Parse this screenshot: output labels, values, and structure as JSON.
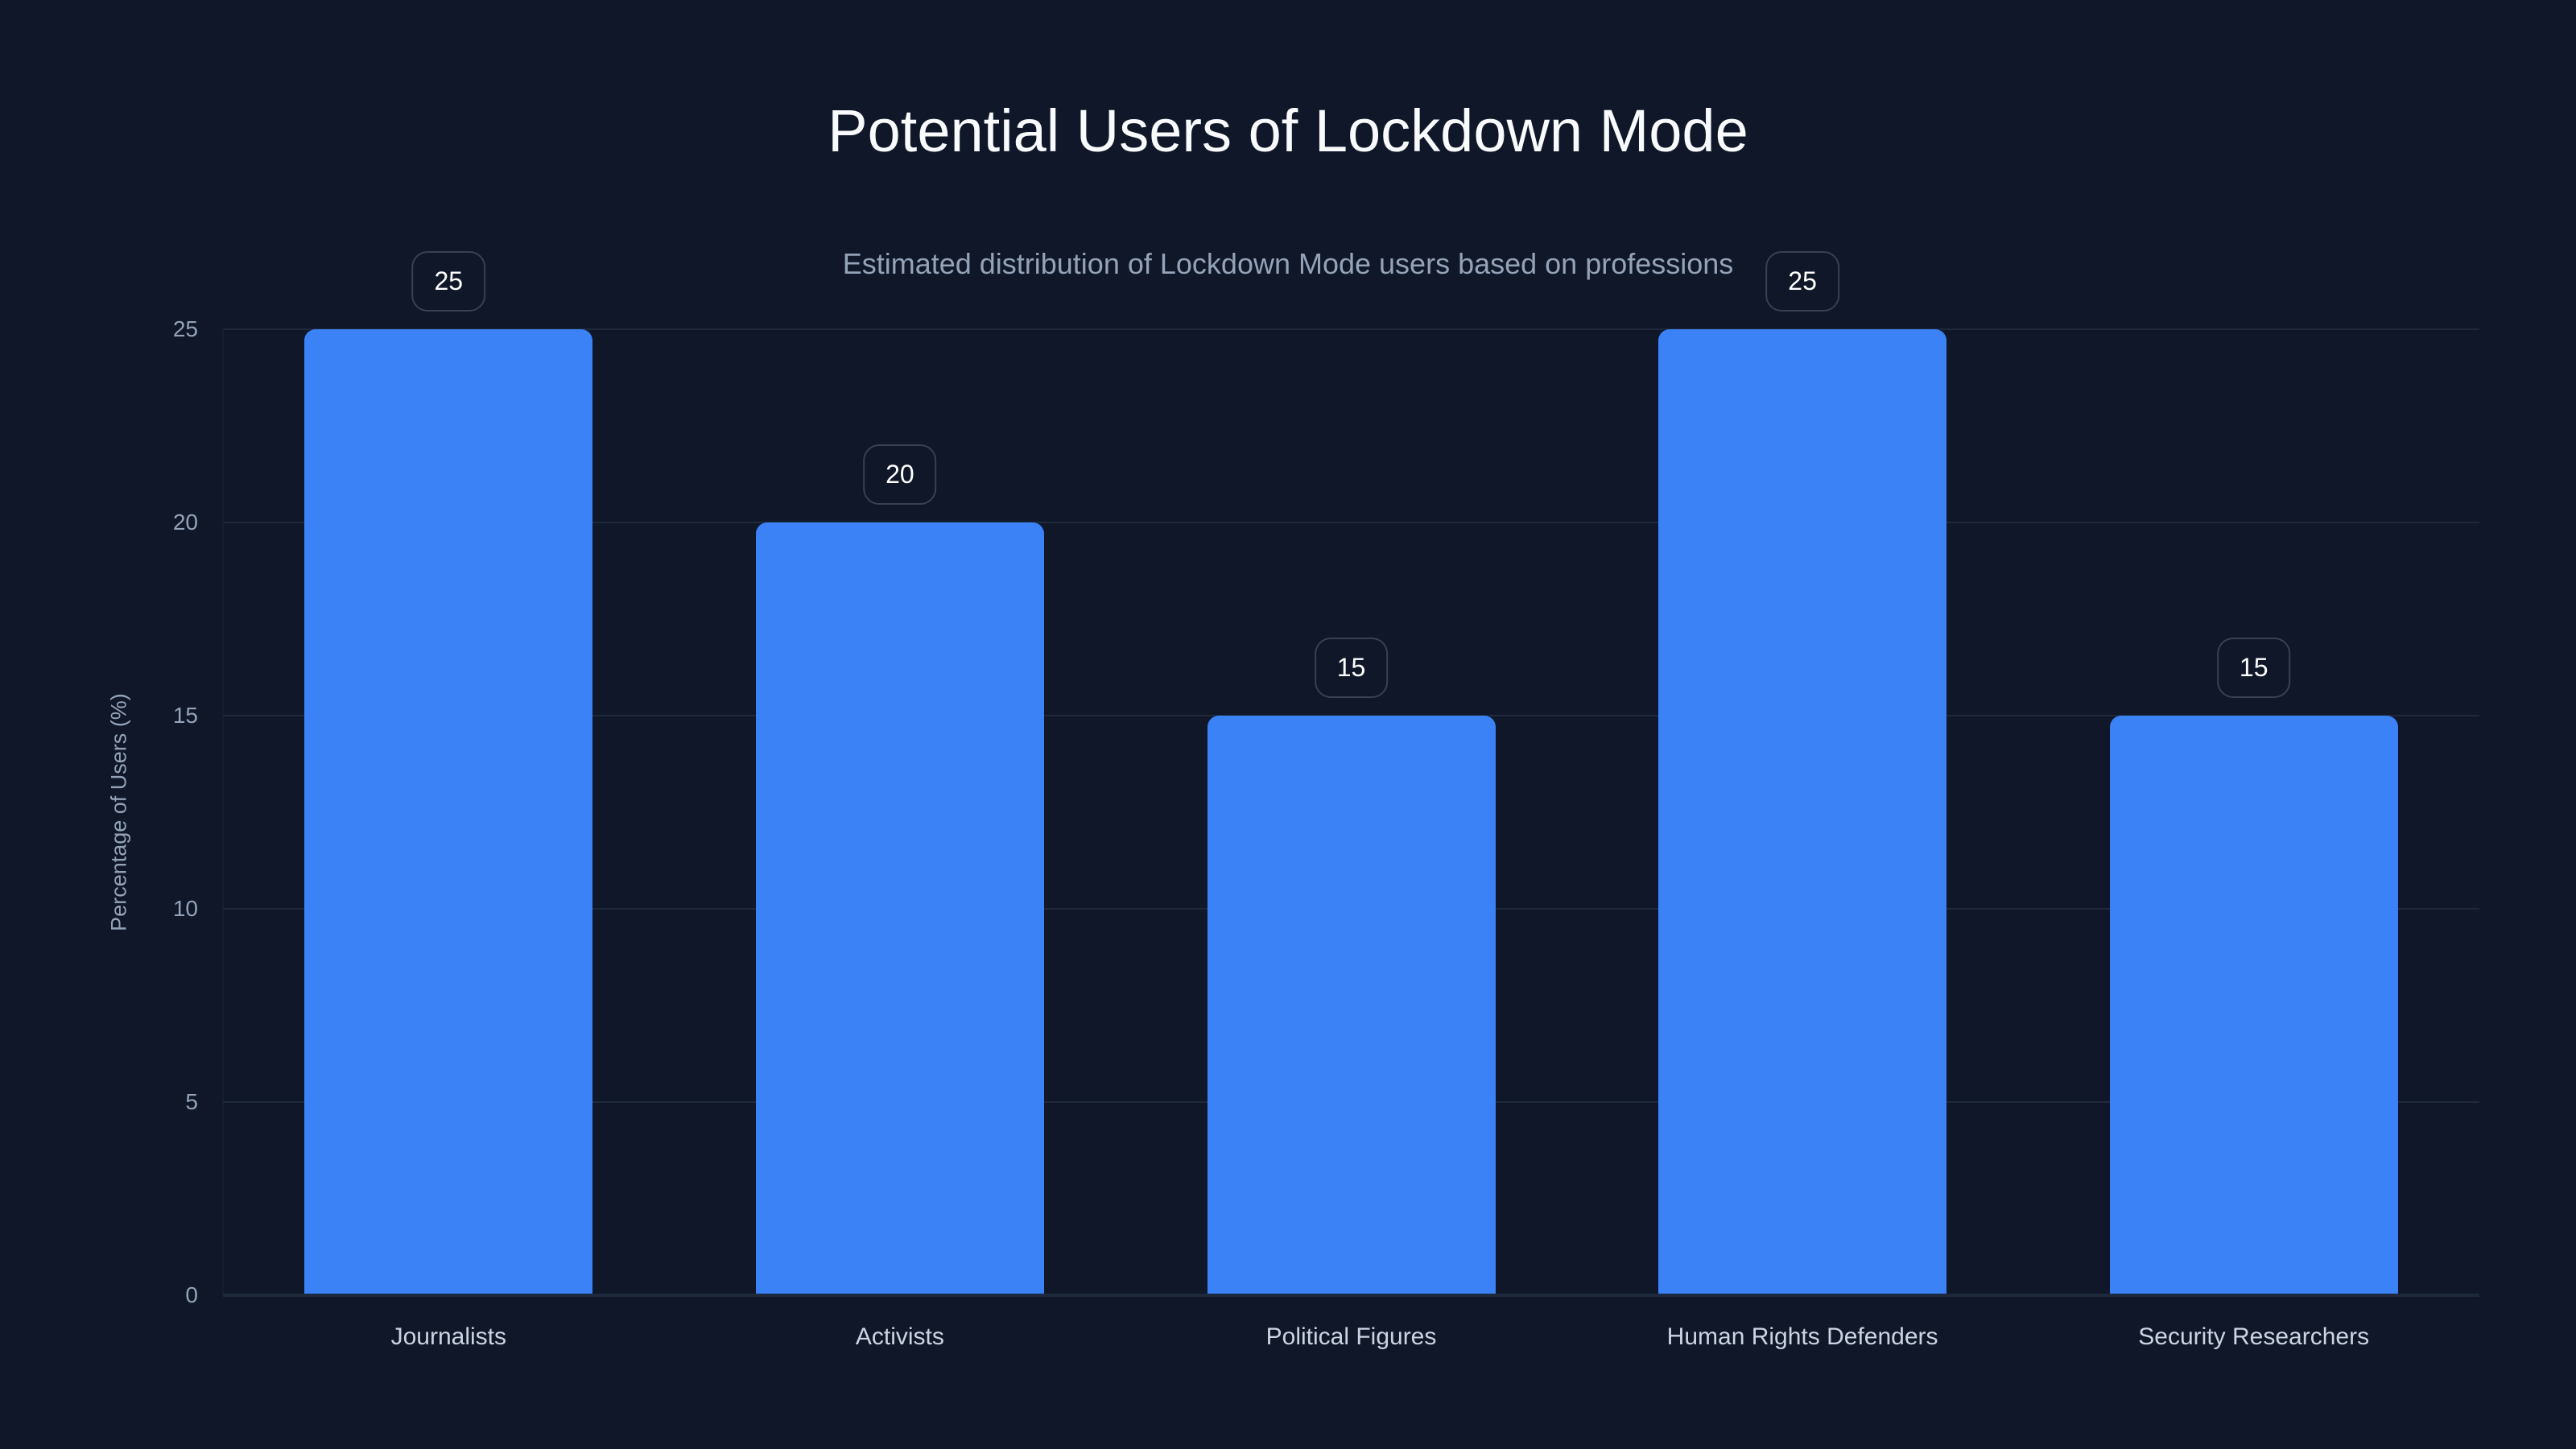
{
  "header": {
    "title": "Potential Users of Lockdown Mode",
    "subtitle": "Estimated distribution of Lockdown Mode users based on professions"
  },
  "axes": {
    "y_title": "Percentage of Users (%)",
    "y_ticks": [
      "0",
      "5",
      "10",
      "15",
      "20",
      "25"
    ]
  },
  "colors": {
    "background": "#0f1729",
    "bar": "#3b82f6",
    "gridline": "#1e293b",
    "badge_border": "#374151",
    "muted_text": "#94a3b8"
  },
  "chart_data": {
    "type": "bar",
    "title": "Potential Users of Lockdown Mode",
    "subtitle": "Estimated distribution of Lockdown Mode users based on professions",
    "categories": [
      "Journalists",
      "Activists",
      "Political Figures",
      "Human Rights Defenders",
      "Security Researchers"
    ],
    "values": [
      25,
      20,
      15,
      25,
      15
    ],
    "value_labels": [
      "25",
      "20",
      "15",
      "25",
      "15"
    ],
    "xlabel": "",
    "ylabel": "Percentage of Users (%)",
    "ylim": [
      0,
      25
    ],
    "yticks": [
      0,
      5,
      10,
      15,
      20,
      25
    ],
    "grid": true,
    "legend": null
  }
}
